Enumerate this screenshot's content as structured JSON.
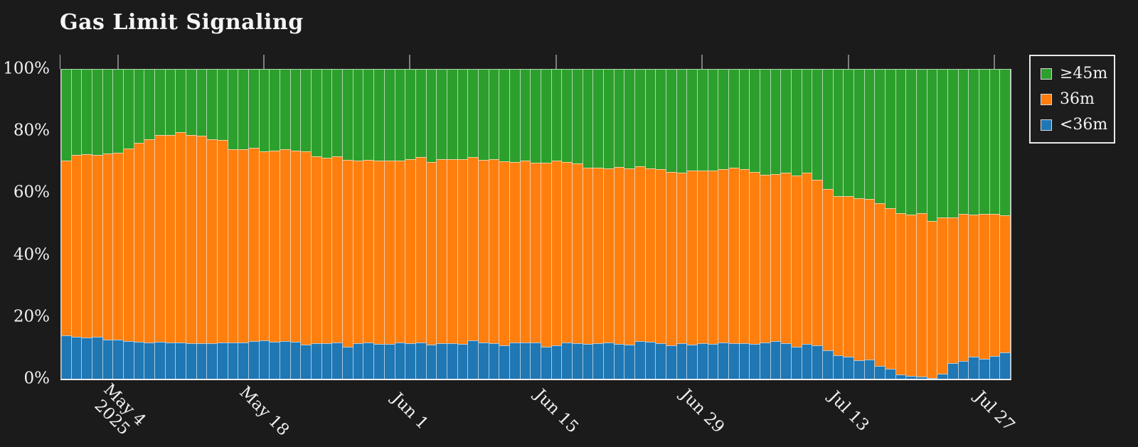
{
  "page": {
    "background": "#1b1b1b"
  },
  "chart_data": {
    "type": "bar",
    "stacked": true,
    "percent_stacked": true,
    "title": "Gas Limit Signaling",
    "xlabel": "",
    "ylabel": "",
    "ylim": [
      0,
      100
    ],
    "grid": false,
    "legend_position": "top-right-outside",
    "x_tick_side": "top",
    "x_label_rotation_deg": 45,
    "x": [
      "Apr 29",
      "Apr 30",
      "May 1",
      "May 2",
      "May 3",
      "May 4",
      "May 5",
      "May 6",
      "May 7",
      "May 8",
      "May 9",
      "May 10",
      "May 11",
      "May 12",
      "May 13",
      "May 14",
      "May 15",
      "May 16",
      "May 17",
      "May 18",
      "May 19",
      "May 20",
      "May 21",
      "May 22",
      "May 23",
      "May 24",
      "May 25",
      "May 26",
      "May 27",
      "May 28",
      "May 29",
      "May 30",
      "May 31",
      "Jun 1",
      "Jun 2",
      "Jun 3",
      "Jun 4",
      "Jun 5",
      "Jun 6",
      "Jun 7",
      "Jun 8",
      "Jun 9",
      "Jun 10",
      "Jun 11",
      "Jun 12",
      "Jun 13",
      "Jun 14",
      "Jun 15",
      "Jun 16",
      "Jun 17",
      "Jun 18",
      "Jun 19",
      "Jun 20",
      "Jun 21",
      "Jun 22",
      "Jun 23",
      "Jun 24",
      "Jun 25",
      "Jun 26",
      "Jun 27",
      "Jun 28",
      "Jun 29",
      "Jun 30",
      "Jul 1",
      "Jul 2",
      "Jul 3",
      "Jul 4",
      "Jul 5",
      "Jul 6",
      "Jul 7",
      "Jul 8",
      "Jul 9",
      "Jul 10",
      "Jul 11",
      "Jul 12",
      "Jul 13",
      "Jul 14",
      "Jul 15",
      "Jul 16",
      "Jul 17",
      "Jul 18",
      "Jul 19",
      "Jul 20",
      "Jul 21",
      "Jul 22",
      "Jul 23",
      "Jul 24",
      "Jul 25",
      "Jul 26",
      "Jul 27",
      "Jul 28"
    ],
    "stack_order_top_to_bottom": [
      "≥45m",
      "36m",
      "<36m"
    ],
    "series": [
      {
        "name": "≥45m",
        "color": "#2ca02c",
        "values": [
          29.5,
          27.8,
          27.6,
          27.8,
          27.2,
          27.0,
          25.6,
          23.8,
          22.6,
          21.3,
          21.3,
          20.3,
          21.3,
          21.5,
          22.6,
          23.0,
          26.0,
          26.0,
          25.5,
          26.6,
          26.4,
          25.9,
          26.4,
          26.6,
          28.3,
          28.7,
          28.3,
          29.3,
          29.6,
          29.3,
          29.6,
          29.6,
          29.6,
          29.1,
          28.5,
          30.0,
          29.1,
          29.1,
          29.1,
          28.5,
          29.3,
          29.1,
          29.9,
          30.0,
          29.6,
          30.2,
          30.2,
          29.6,
          30.0,
          30.6,
          31.8,
          31.8,
          32.2,
          31.6,
          32.2,
          31.4,
          32.0,
          32.4,
          33.2,
          33.6,
          32.7,
          32.7,
          32.7,
          32.4,
          31.9,
          32.4,
          33.2,
          34.1,
          34.0,
          33.6,
          34.3,
          33.5,
          35.7,
          38.8,
          41.0,
          41.1,
          41.7,
          41.9,
          43.4,
          45.0,
          46.5,
          47.1,
          46.5,
          49.0,
          47.9,
          47.9,
          46.9,
          47.1,
          46.9,
          46.7,
          47.3
        ]
      },
      {
        "name": "36m",
        "color": "#ff7f0e",
        "values": [
          56.6,
          58.7,
          59.2,
          58.7,
          60.2,
          60.4,
          62.2,
          64.2,
          65.6,
          66.7,
          66.9,
          68.1,
          67.3,
          67.1,
          66.0,
          65.2,
          62.4,
          62.2,
          62.3,
          61.0,
          61.6,
          61.9,
          61.6,
          62.3,
          60.2,
          59.8,
          60.1,
          60.4,
          58.9,
          58.9,
          59.1,
          59.1,
          58.7,
          59.5,
          59.8,
          58.9,
          59.4,
          59.4,
          59.6,
          59.2,
          59.1,
          59.4,
          59.4,
          58.3,
          58.6,
          58.2,
          59.5,
          59.7,
          58.3,
          57.9,
          57.0,
          56.7,
          56.2,
          57.1,
          56.7,
          56.4,
          56.0,
          56.1,
          56.1,
          54.9,
          56.2,
          55.8,
          56.0,
          55.8,
          56.6,
          56.1,
          55.5,
          54.1,
          53.8,
          54.9,
          55.4,
          55.3,
          53.6,
          52.0,
          51.5,
          51.7,
          52.3,
          51.8,
          52.4,
          51.8,
          52.1,
          51.9,
          52.9,
          50.7,
          50.5,
          47.0,
          47.4,
          45.9,
          46.6,
          45.9,
          44.2
        ]
      },
      {
        "name": "<36m",
        "color": "#1f77b4",
        "values": [
          13.9,
          13.5,
          13.2,
          13.5,
          12.6,
          12.6,
          12.2,
          12.0,
          11.8,
          12.0,
          11.8,
          11.6,
          11.4,
          11.4,
          11.4,
          11.8,
          11.6,
          11.8,
          12.2,
          12.4,
          12.0,
          12.2,
          12.0,
          11.1,
          11.5,
          11.5,
          11.6,
          10.3,
          11.5,
          11.8,
          11.3,
          11.3,
          11.7,
          11.4,
          11.7,
          11.1,
          11.5,
          11.5,
          11.3,
          12.3,
          11.6,
          11.5,
          10.7,
          11.7,
          11.8,
          11.6,
          10.3,
          10.7,
          11.7,
          11.5,
          11.2,
          11.5,
          11.6,
          11.3,
          11.1,
          12.2,
          12.0,
          11.5,
          10.7,
          11.5,
          11.1,
          11.5,
          11.3,
          11.8,
          11.5,
          11.5,
          11.3,
          11.8,
          12.2,
          11.5,
          10.3,
          11.2,
          10.7,
          9.2,
          7.5,
          7.2,
          6.0,
          6.3,
          4.2,
          3.2,
          1.4,
          1.0,
          0.6,
          0.3,
          1.6,
          5.1,
          5.7,
          7.0,
          6.5,
          7.4,
          8.5
        ]
      }
    ],
    "yticks": [
      {
        "label": "0%",
        "value": 0
      },
      {
        "label": "20%",
        "value": 20
      },
      {
        "label": "40%",
        "value": 40
      },
      {
        "label": "60%",
        "value": 60
      },
      {
        "label": "80%",
        "value": 80
      },
      {
        "label": "100%",
        "value": 100
      }
    ],
    "xticks": [
      {
        "index": 5,
        "label": "May 4",
        "year": "2025"
      },
      {
        "index": 19,
        "label": "May 18"
      },
      {
        "index": 33,
        "label": "Jun 1"
      },
      {
        "index": 47,
        "label": "Jun 15"
      },
      {
        "index": 61,
        "label": "Jun 29"
      },
      {
        "index": 75,
        "label": "Jul 13"
      },
      {
        "index": 89,
        "label": "Jul 27"
      }
    ]
  }
}
